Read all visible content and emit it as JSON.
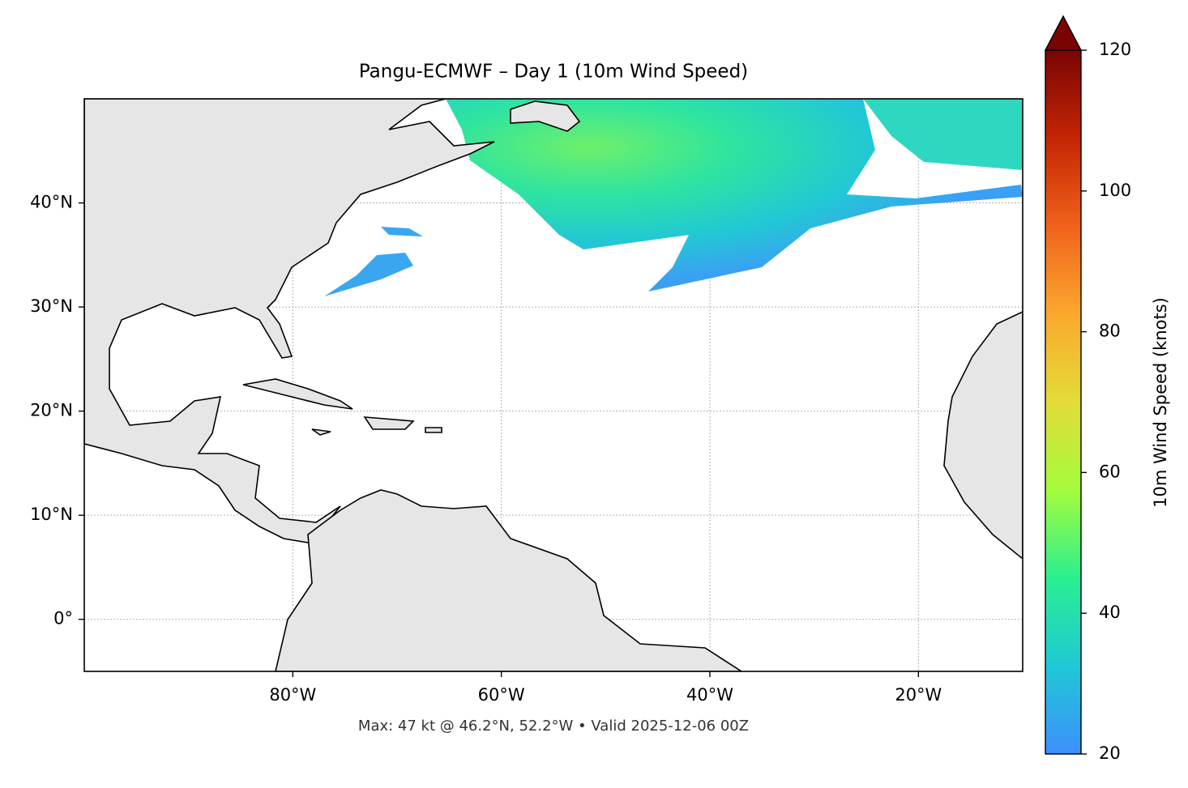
{
  "chart_data": {
    "type": "map",
    "title": "Pangu-ECMWF – Day 1 (10m Wind Speed)",
    "footer": "Max: 47 kt @ 46.2°N, 52.2°W • Valid 2025-12-06 00Z",
    "xlim": [
      -100,
      -10
    ],
    "ylim": [
      -5,
      50
    ],
    "xticks": [
      {
        "value": -80,
        "label": "80°W"
      },
      {
        "value": -60,
        "label": "60°W"
      },
      {
        "value": -40,
        "label": "40°W"
      },
      {
        "value": -20,
        "label": "20°W"
      }
    ],
    "yticks": [
      {
        "value": 0,
        "label": "0°"
      },
      {
        "value": 10,
        "label": "10°N"
      },
      {
        "value": 20,
        "label": "20°N"
      },
      {
        "value": 30,
        "label": "30°N"
      },
      {
        "value": 40,
        "label": "40°N"
      }
    ],
    "grid": true,
    "colorbar": {
      "label": "10m Wind Speed (knots)",
      "lim": [
        20,
        120
      ],
      "ticks": [
        20,
        40,
        60,
        80,
        100,
        120
      ],
      "colors": [
        "#3e8ffc",
        "#1fc8d6",
        "#2aef91",
        "#a4fc3c",
        "#e2dc38",
        "#fba82d",
        "#f0621b",
        "#c42503",
        "#7a0403"
      ]
    }
  }
}
